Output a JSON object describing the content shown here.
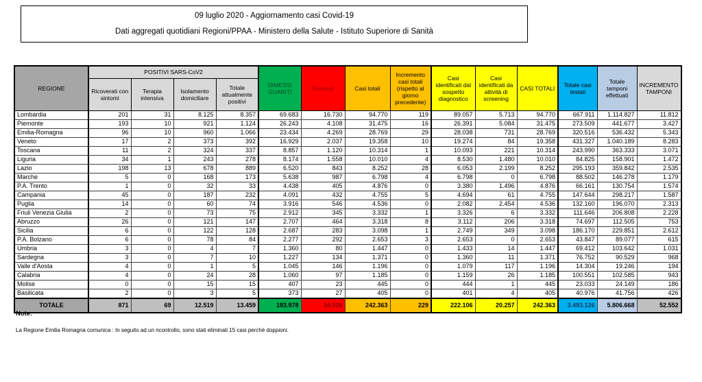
{
  "title": {
    "line1": "09 luglio 2020 - Aggiornamento casi Covid-19",
    "line2": "Dati aggregati quotidiani Regioni/PPAA - Ministero della Salute - Istituto Superiore di Sanità"
  },
  "table": {
    "headers": {
      "regione": "REGIONE",
      "positivi_group": "POSITIVI SARS-CoV2",
      "sub": [
        "Ricoverati con sintomi",
        "Terapia intensiva",
        "Isolamento domiciliare",
        "Totale attualmente positivi"
      ],
      "dimessi": "DIMESSI GUARITI",
      "deceduti": "Deceduti",
      "casi_totali": "Casi totali",
      "incremento_casi": "Incremento casi totali (rispetto al giorno precedente)",
      "sospetto": "Casi identificati dal sospetto diagnostico",
      "screening": "Casi identificati da attività di screening",
      "casi_totali_2": "CASI TOTALI",
      "testati": "Totale casi testati",
      "tamponi": "Totale tamponi effettuati",
      "incremento_tamponi": "INCREMENTO TAMPONI"
    },
    "rows": [
      {
        "regione": "Lombardia",
        "values": [
          "201",
          "31",
          "8.125",
          "8.357",
          "69.683",
          "16.730",
          "94.770",
          "119",
          "89.057",
          "5.713",
          "94.770",
          "667.911",
          "1.114.827",
          "11.812"
        ]
      },
      {
        "regione": "Piemonte",
        "values": [
          "193",
          "10",
          "921",
          "1.124",
          "26.243",
          "4.108",
          "31.475",
          "16",
          "26.391",
          "5.084",
          "31.475",
          "273.509",
          "441.677",
          "3.427"
        ]
      },
      {
        "regione": "Emilia-Romagna",
        "values": [
          "96",
          "10",
          "960",
          "1.066",
          "23.434",
          "4.269",
          "28.769",
          "29",
          "28.038",
          "731",
          "28.769",
          "320.516",
          "536.432",
          "5.343"
        ]
      },
      {
        "regione": "Veneto",
        "values": [
          "17",
          "2",
          "373",
          "392",
          "16.929",
          "2.037",
          "19.358",
          "10",
          "19.274",
          "84",
          "19.358",
          "431.327",
          "1.040.189",
          "8.283"
        ]
      },
      {
        "regione": "Toscana",
        "values": [
          "11",
          "2",
          "324",
          "337",
          "8.857",
          "1.120",
          "10.314",
          "1",
          "10.093",
          "221",
          "10.314",
          "243.990",
          "363.333",
          "3.071"
        ]
      },
      {
        "regione": "Liguria",
        "values": [
          "34",
          "1",
          "243",
          "278",
          "8.174",
          "1.558",
          "10.010",
          "4",
          "8.530",
          "1.480",
          "10.010",
          "84.825",
          "158.901",
          "1.472"
        ]
      },
      {
        "regione": "Lazio",
        "values": [
          "198",
          "13",
          "678",
          "889",
          "6.520",
          "843",
          "8.252",
          "28",
          "6.053",
          "2.199",
          "8.252",
          "295.193",
          "359.842",
          "2.535"
        ]
      },
      {
        "regione": "Marche",
        "values": [
          "5",
          "0",
          "168",
          "173",
          "5.638",
          "987",
          "6.798",
          "4",
          "6.798",
          "0",
          "6.798",
          "88.502",
          "146.278",
          "1.179"
        ]
      },
      {
        "regione": "P.A. Trento",
        "values": [
          "1",
          "0",
          "32",
          "33",
          "4.438",
          "405",
          "4.876",
          "0",
          "3.380",
          "1.496",
          "4.876",
          "66.161",
          "130.754",
          "1.574"
        ]
      },
      {
        "regione": "Campania",
        "values": [
          "45",
          "0",
          "187",
          "232",
          "4.091",
          "432",
          "4.755",
          "5",
          "4.694",
          "61",
          "4.755",
          "147.644",
          "298.217",
          "1.587"
        ]
      },
      {
        "regione": "Puglia",
        "values": [
          "14",
          "0",
          "60",
          "74",
          "3.916",
          "546",
          "4.536",
          "0",
          "2.082",
          "2.454",
          "4.536",
          "132.160",
          "196.070",
          "2.313"
        ]
      },
      {
        "regione": "Friuli Venezia Giulia",
        "values": [
          "2",
          "0",
          "73",
          "75",
          "2.912",
          "345",
          "3.332",
          "1",
          "3.326",
          "6",
          "3.332",
          "111.646",
          "206.808",
          "2.228"
        ]
      },
      {
        "regione": "Abruzzo",
        "values": [
          "26",
          "0",
          "121",
          "147",
          "2.707",
          "464",
          "3.318",
          "8",
          "3.112",
          "206",
          "3.318",
          "74.697",
          "112.505",
          "753"
        ]
      },
      {
        "regione": "Sicilia",
        "values": [
          "6",
          "0",
          "122",
          "128",
          "2.687",
          "283",
          "3.098",
          "1",
          "2.749",
          "349",
          "3.098",
          "186.170",
          "229.851",
          "2.612"
        ]
      },
      {
        "regione": "P.A. Bolzano",
        "values": [
          "6",
          "0",
          "78",
          "84",
          "2.277",
          "292",
          "2.653",
          "3",
          "2.653",
          "0",
          "2.653",
          "43.847",
          "89.077",
          "615"
        ]
      },
      {
        "regione": "Umbria",
        "values": [
          "3",
          "0",
          "4",
          "7",
          "1.360",
          "80",
          "1.447",
          "0",
          "1.433",
          "14",
          "1.447",
          "69.412",
          "103.642",
          "1.031"
        ]
      },
      {
        "regione": "Sardegna",
        "values": [
          "3",
          "0",
          "7",
          "10",
          "1.227",
          "134",
          "1.371",
          "0",
          "1.360",
          "11",
          "1.371",
          "76.752",
          "90.529",
          "968"
        ]
      },
      {
        "regione": "Valle d'Aosta",
        "values": [
          "4",
          "0",
          "1",
          "5",
          "1.045",
          "146",
          "1.196",
          "0",
          "1.079",
          "117",
          "1.196",
          "14.304",
          "19.246",
          "194"
        ]
      },
      {
        "regione": "Calabria",
        "values": [
          "4",
          "0",
          "24",
          "28",
          "1.060",
          "97",
          "1.185",
          "0",
          "1.159",
          "26",
          "1.185",
          "100.551",
          "102.585",
          "943"
        ]
      },
      {
        "regione": "Molise",
        "values": [
          "0",
          "0",
          "15",
          "15",
          "407",
          "23",
          "445",
          "0",
          "444",
          "1",
          "445",
          "23.033",
          "24.149",
          "186"
        ]
      },
      {
        "regione": "Basilicata",
        "values": [
          "2",
          "0",
          "3",
          "5",
          "373",
          "27",
          "405",
          "0",
          "401",
          "4",
          "405",
          "40.976",
          "41.756",
          "426"
        ]
      }
    ],
    "totale": {
      "label": "TOTALE",
      "values": [
        "871",
        "69",
        "12.519",
        "13.459",
        "193.978",
        "34.926",
        "242.363",
        "229",
        "222.106",
        "20.257",
        "242.363",
        "3.493.126",
        "5.806.668",
        "52.552"
      ]
    }
  },
  "notes": {
    "title": "Note:",
    "body": "La Regione Emilia Romagna comunica : In seguito ad un ricontrollo, sono stati eliminati 15 casi perchè  doppioni."
  },
  "colors": {
    "green": "#00b050",
    "red": "#ff0000",
    "orange": "#ffc000",
    "yellow": "#ffff00",
    "blue": "#00b0f0",
    "light_blue": "#b8cce4",
    "header_gray": "#a6a6a6",
    "light_gray": "#d9d9d9",
    "total_gray": "#bfbfbf"
  }
}
